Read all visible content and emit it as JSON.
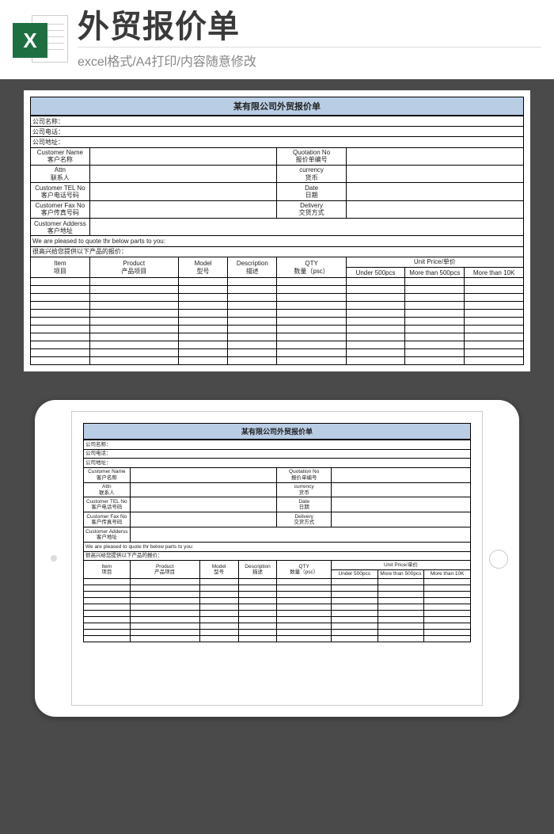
{
  "header": {
    "icon_letter": "X",
    "title": "外贸报价单",
    "subtitle": "excel格式/A4打印/内容随意修改"
  },
  "sheet": {
    "title": "某有限公司外贸报价单",
    "company_name_label": "公司名称：",
    "company_tel_label": "公司电话：",
    "company_addr_label": "公司地址：",
    "rows": [
      {
        "l_en": "Customer Name",
        "l_cn": "客户名称",
        "r_en": "Quotation No",
        "r_cn": "报价单编号"
      },
      {
        "l_en": "Attn",
        "l_cn": "联系人",
        "r_en": "currency",
        "r_cn": "货币"
      },
      {
        "l_en": "Customer TEL No",
        "l_cn": "客户电话号码",
        "r_en": "Date",
        "r_cn": "日期"
      },
      {
        "l_en": "Customer Fax No",
        "l_cn": "客户传真号码",
        "r_en": "Delivery",
        "r_cn": "交货方式"
      },
      {
        "l_en": "Customer Adderss",
        "l_cn": "客户地址",
        "r_en": "",
        "r_cn": ""
      }
    ],
    "note_en": "We are pleased to quote thr below parts to you:",
    "note_cn": "很高兴给您提供以下产品的报价：",
    "cols": {
      "item_en": "Item",
      "item_cn": "项目",
      "product_en": "Product",
      "product_cn": "产品项目",
      "model_en": "Model",
      "model_cn": "型号",
      "desc_en": "Description",
      "desc_cn": "描述",
      "qty_en": "QTY",
      "qty_cn": "数量（psc）",
      "price_head": "Unit Price/单价",
      "p1": "Under 500pcs",
      "p2": "More than 500pcs",
      "p3": "More than 10K"
    },
    "data_rows": 11,
    "data_rows_small": 10,
    "styling": {
      "title_bg": "#b9cde5",
      "border_color": "#000000",
      "page_bg": "#ffffff",
      "body_bg": "#4a4a4a",
      "excel_green": "#1d6f42",
      "title_fontsize_main": 11,
      "title_fontsize_small": 9,
      "base_fontsize_main": 8,
      "base_fontsize_small": 6.5
    }
  }
}
